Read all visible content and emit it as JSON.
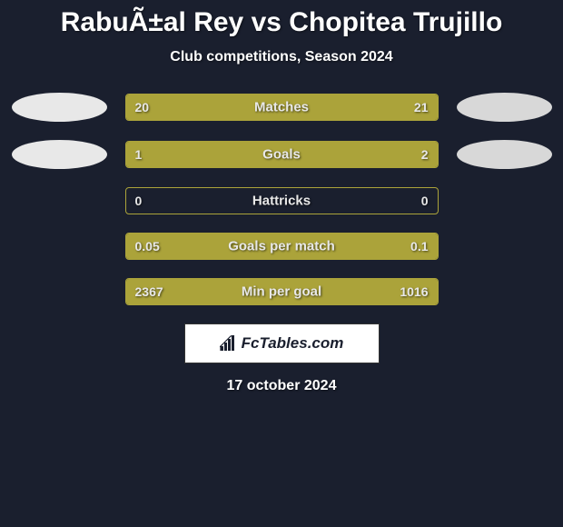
{
  "title": "RabuÃ±al Rey vs Chopitea Trujillo",
  "subtitle": "Club competitions, Season 2024",
  "colors": {
    "background": "#1a1f2e",
    "bar_fill": "#aba33a",
    "bar_border": "#aba33a",
    "badge_left": "#e8e8e8",
    "badge_right": "#d8d8d8",
    "text": "#ffffff"
  },
  "stats": [
    {
      "label": "Matches",
      "left_value": "20",
      "right_value": "21",
      "left_pct": 49,
      "right_pct": 51,
      "show_badges": true
    },
    {
      "label": "Goals",
      "left_value": "1",
      "right_value": "2",
      "left_pct": 33,
      "right_pct": 67,
      "show_badges": true
    },
    {
      "label": "Hattricks",
      "left_value": "0",
      "right_value": "0",
      "left_pct": 0,
      "right_pct": 0,
      "show_badges": false
    },
    {
      "label": "Goals per match",
      "left_value": "0.05",
      "right_value": "0.1",
      "left_pct": 33,
      "right_pct": 67,
      "show_badges": false
    },
    {
      "label": "Min per goal",
      "left_value": "2367",
      "right_value": "1016",
      "left_pct": 70,
      "right_pct": 30,
      "show_badges": false
    }
  ],
  "logo_text": "FcTables.com",
  "date": "17 october 2024"
}
